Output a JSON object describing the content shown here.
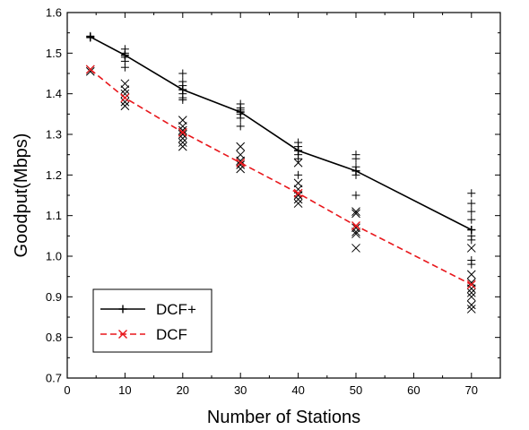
{
  "chart_data": {
    "type": "line",
    "xlabel": "Number of Stations",
    "ylabel": "Goodput(Mbps)",
    "xlim": [
      0,
      75
    ],
    "ylim": [
      0.7,
      1.6
    ],
    "x_ticks": [
      0,
      10,
      20,
      30,
      40,
      50,
      60,
      70
    ],
    "y_ticks": [
      0.7,
      0.8,
      0.9,
      1.0,
      1.1,
      1.2,
      1.3,
      1.4,
      1.5,
      1.6
    ],
    "grid": false,
    "legend_position": "bottom-left",
    "series": [
      {
        "name": "DCF+",
        "color": "#000000",
        "line_style": "solid",
        "marker": "plus",
        "x": [
          4,
          10,
          20,
          30,
          40,
          50,
          70
        ],
        "y": [
          1.54,
          1.495,
          1.41,
          1.355,
          1.26,
          1.21,
          1.065
        ],
        "scatter": [
          [
            4,
            1.538
          ],
          [
            4,
            1.542
          ],
          [
            10,
            1.51
          ],
          [
            10,
            1.5
          ],
          [
            10,
            1.49
          ],
          [
            10,
            1.48
          ],
          [
            10,
            1.465
          ],
          [
            20,
            1.45
          ],
          [
            20,
            1.43
          ],
          [
            20,
            1.42
          ],
          [
            20,
            1.4
          ],
          [
            20,
            1.39
          ],
          [
            20,
            1.385
          ],
          [
            30,
            1.375
          ],
          [
            30,
            1.365
          ],
          [
            30,
            1.36
          ],
          [
            30,
            1.35
          ],
          [
            30,
            1.34
          ],
          [
            30,
            1.32
          ],
          [
            40,
            1.28
          ],
          [
            40,
            1.27
          ],
          [
            40,
            1.26
          ],
          [
            40,
            1.25
          ],
          [
            40,
            1.24
          ],
          [
            40,
            1.2
          ],
          [
            50,
            1.25
          ],
          [
            50,
            1.24
          ],
          [
            50,
            1.22
          ],
          [
            50,
            1.21
          ],
          [
            50,
            1.2
          ],
          [
            50,
            1.15
          ],
          [
            70,
            1.155
          ],
          [
            70,
            1.13
          ],
          [
            70,
            1.11
          ],
          [
            70,
            1.09
          ],
          [
            70,
            1.065
          ],
          [
            70,
            1.05
          ],
          [
            70,
            1.04
          ],
          [
            70,
            0.99
          ],
          [
            70,
            0.98
          ]
        ]
      },
      {
        "name": "DCF",
        "color": "#e8161b",
        "line_style": "dashed",
        "marker": "cross",
        "x": [
          4,
          10,
          20,
          30,
          40,
          50,
          70
        ],
        "y": [
          1.46,
          1.39,
          1.305,
          1.23,
          1.155,
          1.075,
          0.93
        ],
        "scatter": [
          [
            4,
            1.46
          ],
          [
            4,
            1.455
          ],
          [
            10,
            1.425
          ],
          [
            10,
            1.41
          ],
          [
            10,
            1.4
          ],
          [
            10,
            1.39
          ],
          [
            10,
            1.38
          ],
          [
            10,
            1.37
          ],
          [
            20,
            1.335
          ],
          [
            20,
            1.32
          ],
          [
            20,
            1.31
          ],
          [
            20,
            1.3
          ],
          [
            20,
            1.29
          ],
          [
            20,
            1.28
          ],
          [
            20,
            1.27
          ],
          [
            30,
            1.27
          ],
          [
            30,
            1.25
          ],
          [
            30,
            1.235
          ],
          [
            30,
            1.225
          ],
          [
            30,
            1.215
          ],
          [
            40,
            1.23
          ],
          [
            40,
            1.18
          ],
          [
            40,
            1.165
          ],
          [
            40,
            1.15
          ],
          [
            40,
            1.14
          ],
          [
            40,
            1.13
          ],
          [
            50,
            1.11
          ],
          [
            50,
            1.105
          ],
          [
            50,
            1.07
          ],
          [
            50,
            1.06
          ],
          [
            50,
            1.055
          ],
          [
            50,
            1.02
          ],
          [
            70,
            1.02
          ],
          [
            70,
            0.955
          ],
          [
            70,
            0.935
          ],
          [
            70,
            0.92
          ],
          [
            70,
            0.91
          ],
          [
            70,
            0.9
          ],
          [
            70,
            0.88
          ],
          [
            70,
            0.87
          ]
        ]
      }
    ],
    "legend": [
      "DCF+",
      "DCF"
    ]
  }
}
